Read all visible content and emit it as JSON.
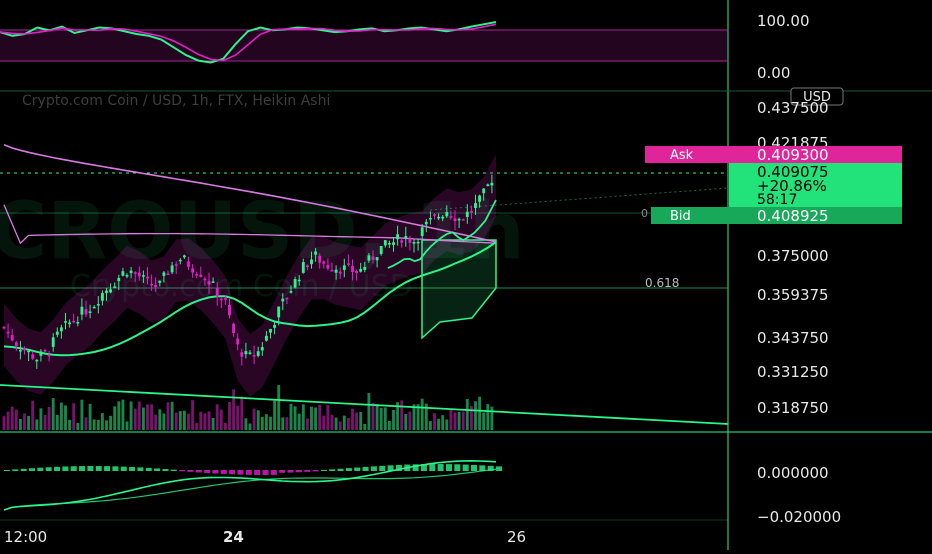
{
  "colors": {
    "background": "#000000",
    "green": "#2bf58a",
    "pink": "#e020c8",
    "magenta_line": "#d87ae0",
    "grid": "#0f3a20",
    "axis_text": "#e8e8e8",
    "ask_bg": "#e0259a",
    "price_bg": "#22e37a",
    "bid_bg": "#18a85a"
  },
  "header": {
    "title": "Crypto.com Coin / USD, 1h, FTX, Heikin Ashi",
    "watermark_symbol": "CROUSD, 1h",
    "watermark_name": "Crypto.com Coin / USD"
  },
  "price_axis": {
    "currency": "USD",
    "ticks": [
      "0.437500",
      "0.421875",
      "0.375000",
      "0.359375",
      "0.343750",
      "0.331250",
      "0.318750"
    ]
  },
  "stoch_axis": {
    "ticks": [
      "100.00",
      "0.00"
    ]
  },
  "macd_axis": {
    "ticks": [
      "0.000000",
      "−0.020000"
    ]
  },
  "time_axis": {
    "ticks": [
      "12:00",
      "24",
      "26"
    ]
  },
  "price_labels": {
    "ask_label": "Ask",
    "ask_value": "0.409300",
    "last_value": "0.409075",
    "last_change": "+20.86%",
    "last_countdown": "58:17",
    "bid_label": "Bid",
    "bid_value": "0.408925"
  },
  "fib_labels": {
    "level_618": "0.618",
    "level_small": "0"
  },
  "chart_data": {
    "type": "candlestick",
    "title": "Crypto.com Coin / USD, 1h, FTX, Heikin Ashi",
    "y_range": [
      0.3125,
      0.4375
    ],
    "ytick_values": [
      0.4375,
      0.421875,
      0.375,
      0.359375,
      0.34375,
      0.33125,
      0.31875
    ],
    "last_price": 0.409075,
    "ask": 0.4093,
    "bid": 0.408925,
    "change_percent": "+20.86%",
    "fib_level_618": 0.36,
    "close_path": [
      0.347,
      0.341,
      0.337,
      0.334,
      0.337,
      0.345,
      0.349,
      0.353,
      0.356,
      0.362,
      0.366,
      0.371,
      0.369,
      0.365,
      0.364,
      0.372,
      0.376,
      0.372,
      0.369,
      0.363,
      0.357,
      0.339,
      0.334,
      0.337,
      0.346,
      0.356,
      0.364,
      0.372,
      0.377,
      0.373,
      0.372,
      0.371,
      0.37,
      0.375,
      0.38,
      0.382,
      0.385,
      0.383,
      0.389,
      0.393,
      0.396,
      0.392,
      0.395,
      0.4,
      0.409
    ],
    "stochastic": {
      "range": [
        0,
        100
      ],
      "values": [
        78,
        70,
        74,
        88,
        82,
        90,
        76,
        82,
        88,
        86,
        80,
        74,
        70,
        62,
        45,
        28,
        16,
        12,
        20,
        52,
        80,
        88,
        82,
        84,
        88,
        86,
        82,
        78,
        80,
        84,
        86,
        80,
        82,
        86,
        88,
        84,
        80,
        84,
        90,
        95,
        100
      ]
    },
    "macd": {
      "range": [
        -0.02,
        0.01
      ]
    }
  }
}
